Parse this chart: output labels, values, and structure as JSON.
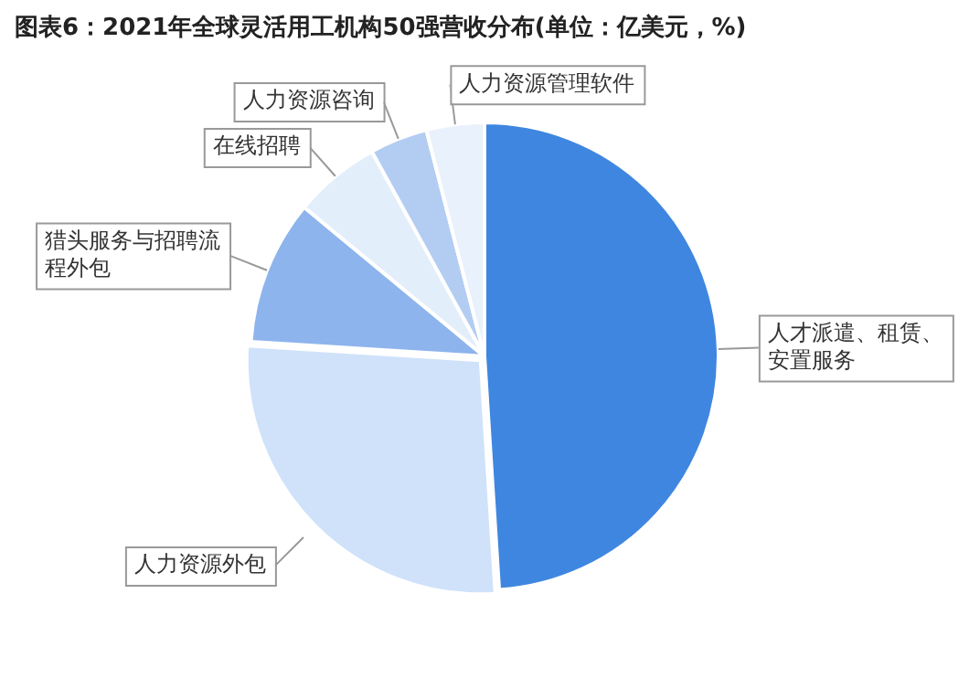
{
  "chart_data": {
    "type": "pie",
    "title": "图表6：2021年全球灵活用工机构50强营收分布(单位：亿美元，%)",
    "categories": [
      "人才派遣、租赁、安置服务",
      "人力资源外包",
      "猎头服务与招聘流程外包",
      "在线招聘",
      "人力资源咨询",
      "人力资源管理软件"
    ],
    "values": [
      49,
      27,
      10,
      6,
      4,
      4
    ],
    "colors": [
      "#3f86e0",
      "#cfe2fa",
      "#8db4ec",
      "#e3eefb",
      "#b3cdf2",
      "#e8f1fc"
    ],
    "legend": false
  }
}
